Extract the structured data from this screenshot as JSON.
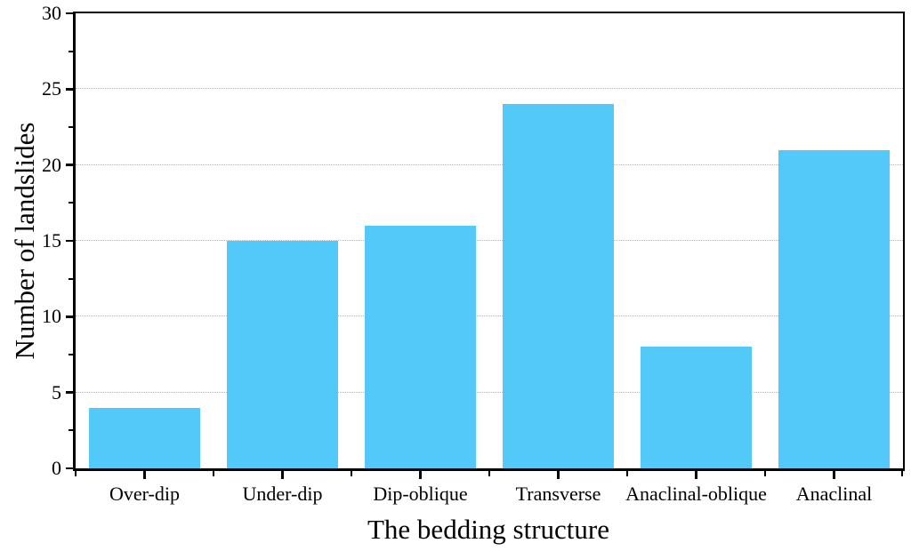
{
  "figure": {
    "background": "#ffffff"
  },
  "chart_data": {
    "type": "bar",
    "title": "",
    "categories": [
      "Over-dip",
      "Under-dip",
      "Dip-oblique",
      "Transverse",
      "Anaclinal-oblique",
      "Anaclinal"
    ],
    "values": [
      4,
      15,
      16,
      24,
      8,
      21
    ],
    "xlabel": "The bedding structure",
    "ylabel": "Number of landslides",
    "ylim": [
      0,
      30
    ],
    "y_major_ticks": [
      0,
      5,
      10,
      15,
      20,
      25,
      30
    ],
    "y_minor_step": 2.5,
    "gridlines": [
      5,
      10,
      15,
      20,
      25
    ],
    "grid_style": "dotted",
    "legend_position": "none",
    "bar_fill_ratio": 0.81,
    "colors": {
      "bar": "#52c9f9",
      "axis": "#000000",
      "gridline": "#b5b5b5",
      "background": "#ffffff"
    }
  }
}
